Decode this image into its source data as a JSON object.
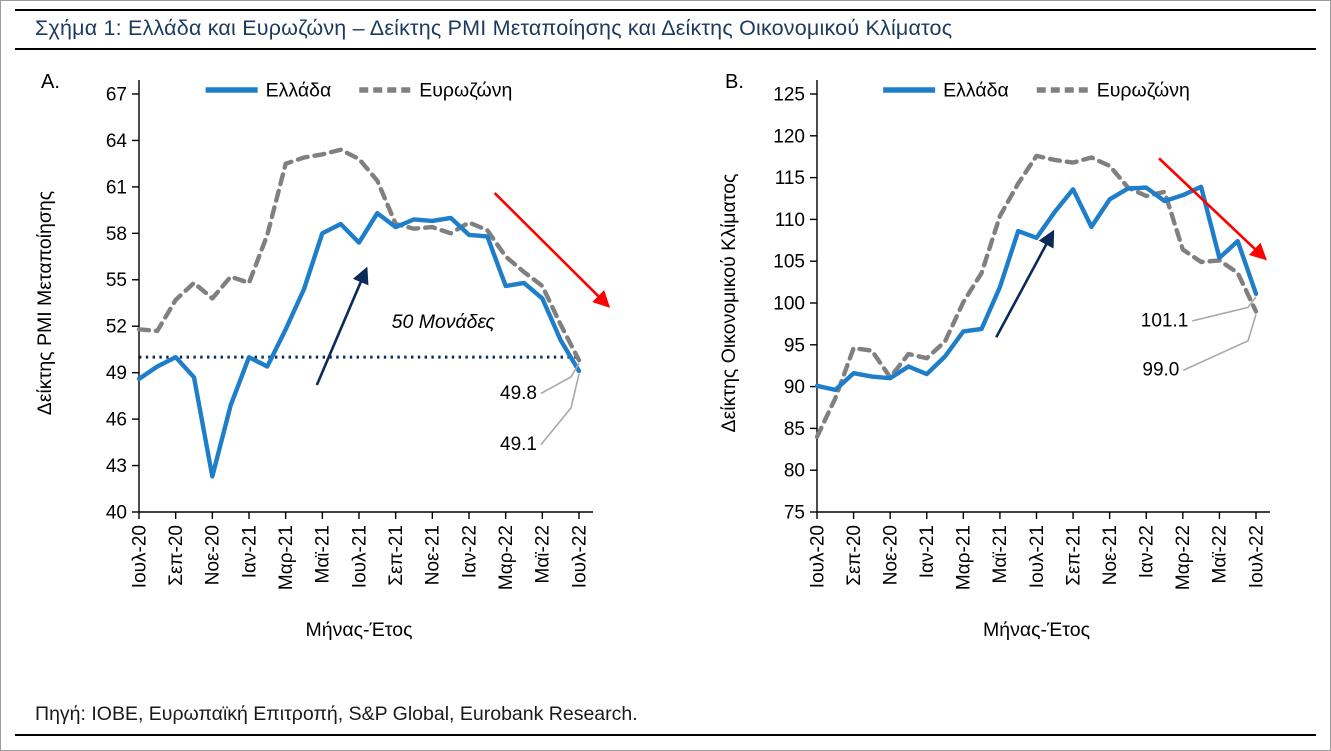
{
  "page": {
    "figure_title": "Σχήμα 1: Ελλάδα και Ευρωζώνη – Δείκτης PMI Μεταποίησης και Δείκτης Οικονομικού Κλίματος",
    "source_note": "Πηγή: ΙΟΒΕ, Ευρωπαϊκή Επιτροπή, S&P Global, Eurobank Research."
  },
  "colors": {
    "greece_line": "#1F7EC9",
    "eurozone_line": "#808080",
    "navy": "#0B2A59",
    "red": "#FF0000",
    "callout_line": "#A8A8A8",
    "axis": "#000000",
    "title_text": "#1B3A5E"
  },
  "chart_data": [
    {
      "type": "line",
      "panel_label": "Α.",
      "ylabel": "Δείκτης PMI Μεταποίησης",
      "xlabel": "Μήνας-Έτος",
      "ylim": [
        40,
        67
      ],
      "yticks": [
        40,
        43,
        46,
        49,
        52,
        55,
        58,
        61,
        64,
        67
      ],
      "xtick_every": 2,
      "grid": false,
      "legend_position": "top",
      "categories": [
        "Ιουλ-20",
        "Αυγ-20",
        "Σεπ-20",
        "Οκτ-20",
        "Νοε-20",
        "Δεκ-20",
        "Ιαν-21",
        "Φεβ-21",
        "Μαρ-21",
        "Απρ-21",
        "Μαϊ-21",
        "Ιουν-21",
        "Ιουλ-21",
        "Αυγ-21",
        "Σεπ-21",
        "Οκτ-21",
        "Νοε-21",
        "Δεκ-21",
        "Ιαν-22",
        "Φεβ-22",
        "Μαρ-22",
        "Απρ-22",
        "Μαϊ-22",
        "Ιουν-22",
        "Ιουλ-22"
      ],
      "series": [
        {
          "key": "greece",
          "name": "Ελλάδα",
          "style": "solid",
          "color_key": "greece_line",
          "values": [
            48.6,
            49.4,
            50.0,
            48.7,
            42.3,
            46.9,
            50.0,
            49.4,
            51.8,
            54.4,
            58.0,
            58.6,
            57.4,
            59.3,
            58.4,
            58.9,
            58.8,
            59.0,
            57.9,
            57.8,
            54.6,
            54.8,
            53.8,
            51.1,
            49.1
          ]
        },
        {
          "key": "eurozone",
          "name": "Ευρωζώνη",
          "style": "dashed",
          "color_key": "eurozone_line",
          "values": [
            51.8,
            51.7,
            53.7,
            54.8,
            53.8,
            55.2,
            54.8,
            57.9,
            62.5,
            62.9,
            63.1,
            63.4,
            62.8,
            61.4,
            58.6,
            58.3,
            58.4,
            58.0,
            58.7,
            58.2,
            56.5,
            55.5,
            54.6,
            52.1,
            49.8
          ]
        }
      ],
      "refline": {
        "y": 50,
        "label": "50 Μονάδες",
        "label_pos": [
          16.6,
          51.9
        ]
      },
      "arrows": [
        {
          "name": "up-trend-arrow",
          "from": [
            9.7,
            48.2
          ],
          "to": [
            12.4,
            55.7
          ],
          "color_key": "navy"
        },
        {
          "name": "down-trend-arrow",
          "from": [
            19.4,
            60.6
          ],
          "to": [
            25.6,
            53.3
          ],
          "color_key": "red"
        }
      ],
      "callouts": [
        {
          "name": "callout-eurozone-last",
          "text": "49.8",
          "pos": [
            20.7,
            47.3
          ],
          "target_series": 1,
          "target_index": 24
        },
        {
          "name": "callout-greece-last",
          "text": "49.1",
          "pos": [
            20.7,
            44.0
          ],
          "target_series": 0,
          "target_index": 24
        }
      ]
    },
    {
      "type": "line",
      "panel_label": "Β.",
      "ylabel": "Δείκτης Οικονομικού Κλίματος",
      "xlabel": "Μήνας-Έτος",
      "ylim": [
        75,
        125
      ],
      "yticks": [
        75,
        80,
        85,
        90,
        95,
        100,
        105,
        110,
        115,
        120,
        125
      ],
      "xtick_every": 2,
      "grid": false,
      "legend_position": "top",
      "categories": [
        "Ιουλ-20",
        "Αυγ-20",
        "Σεπ-20",
        "Οκτ-20",
        "Νοε-20",
        "Δεκ-20",
        "Ιαν-21",
        "Φεβ-21",
        "Μαρ-21",
        "Απρ-21",
        "Μαϊ-21",
        "Ιουν-21",
        "Ιουλ-21",
        "Αυγ-21",
        "Σεπ-21",
        "Οκτ-21",
        "Νοε-21",
        "Δεκ-21",
        "Ιαν-22",
        "Φεβ-22",
        "Μαρ-22",
        "Απρ-22",
        "Μαϊ-22",
        "Ιουν-22",
        "Ιουλ-22"
      ],
      "series": [
        {
          "key": "greece",
          "name": "Ελλάδα",
          "style": "solid",
          "color_key": "greece_line",
          "values": [
            90.1,
            89.6,
            91.6,
            91.2,
            91.0,
            92.4,
            91.5,
            93.6,
            96.6,
            96.9,
            101.9,
            108.6,
            107.8,
            110.9,
            113.6,
            109.1,
            112.4,
            113.7,
            113.8,
            112.2,
            112.9,
            113.9,
            105.4,
            107.4,
            101.1
          ]
        },
        {
          "key": "eurozone",
          "name": "Ευρωζώνη",
          "style": "dashed",
          "color_key": "eurozone_line",
          "values": [
            84.0,
            88.6,
            94.6,
            94.3,
            91.1,
            93.9,
            93.4,
            95.4,
            100.1,
            103.6,
            110.4,
            114.3,
            117.6,
            117.1,
            116.8,
            117.4,
            116.4,
            113.8,
            112.8,
            113.3,
            106.4,
            104.9,
            105.1,
            103.6,
            99.0
          ]
        }
      ],
      "refline": null,
      "arrows": [
        {
          "name": "up-trend-arrow",
          "from": [
            9.8,
            95.9
          ],
          "to": [
            12.9,
            108.5
          ],
          "color_key": "navy"
        },
        {
          "name": "down-trend-arrow",
          "from": [
            18.7,
            117.3
          ],
          "to": [
            24.5,
            105.3
          ],
          "color_key": "red"
        }
      ],
      "callouts": [
        {
          "name": "callout-greece-last",
          "text": "101.1",
          "pos": [
            19.0,
            97.2
          ],
          "target_series": 0,
          "target_index": 24
        },
        {
          "name": "callout-eurozone-last",
          "text": "99.0",
          "pos": [
            18.8,
            91.3
          ],
          "target_series": 1,
          "target_index": 24
        }
      ]
    }
  ]
}
